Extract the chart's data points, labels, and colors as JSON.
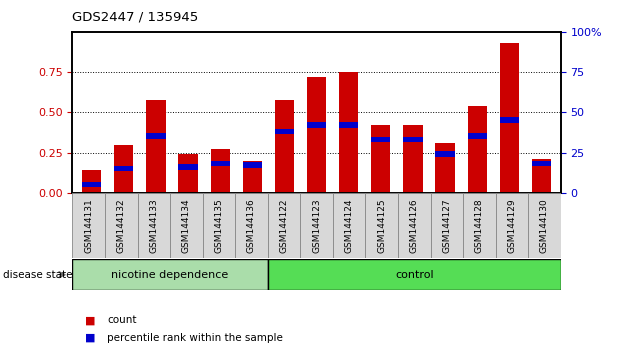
{
  "title": "GDS2447 / 135945",
  "samples": [
    "GSM144131",
    "GSM144132",
    "GSM144133",
    "GSM144134",
    "GSM144135",
    "GSM144136",
    "GSM144122",
    "GSM144123",
    "GSM144124",
    "GSM144125",
    "GSM144126",
    "GSM144127",
    "GSM144128",
    "GSM144129",
    "GSM144130"
  ],
  "red_values": [
    0.14,
    0.3,
    0.58,
    0.24,
    0.27,
    0.2,
    0.58,
    0.72,
    0.75,
    0.42,
    0.42,
    0.31,
    0.54,
    0.93,
    0.21
  ],
  "blue_values": [
    0.07,
    0.17,
    0.37,
    0.18,
    0.2,
    0.19,
    0.4,
    0.44,
    0.44,
    0.35,
    0.35,
    0.26,
    0.37,
    0.47,
    0.2
  ],
  "red_color": "#cc0000",
  "blue_color": "#0000cc",
  "nicotine_count": 6,
  "control_count": 9,
  "nicotine_label": "nicotine dependence",
  "control_label": "control",
  "disease_state_label": "disease state",
  "legend_count": "count",
  "legend_percentile": "percentile rank within the sample",
  "ylim": [
    0,
    1.0
  ],
  "yticks_left": [
    0,
    0.25,
    0.5,
    0.75
  ],
  "yticks_right": [
    0,
    25,
    50,
    75,
    100
  ],
  "nicotine_color": "#aaddaa",
  "control_color": "#55dd55",
  "background_color": "#ffffff",
  "bar_width": 0.6,
  "blue_bar_height": 0.035
}
